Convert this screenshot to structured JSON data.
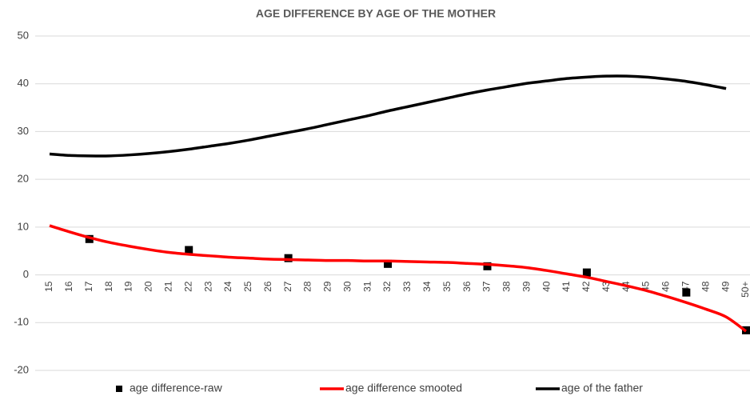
{
  "chart_data": {
    "type": "line",
    "title": "AGE DIFFERENCE BY AGE OF THE MOTHER",
    "categories": [
      "15",
      "16",
      "17",
      "18",
      "19",
      "20",
      "21",
      "22",
      "23",
      "24",
      "25",
      "26",
      "27",
      "28",
      "29",
      "30",
      "31",
      "32",
      "33",
      "34",
      "35",
      "36",
      "37",
      "38",
      "39",
      "40",
      "41",
      "42",
      "43",
      "44",
      "45",
      "46",
      "47",
      "48",
      "49",
      "50+"
    ],
    "series": [
      {
        "name": "age difference-raw",
        "color": "#000000",
        "marker": "square",
        "values": [
          null,
          null,
          7.5,
          null,
          null,
          null,
          null,
          5.2,
          null,
          null,
          null,
          null,
          3.5,
          null,
          null,
          null,
          null,
          2.3,
          null,
          null,
          null,
          null,
          1.8,
          null,
          null,
          null,
          null,
          0.5,
          null,
          null,
          null,
          null,
          -3.7,
          null,
          null,
          -11.6
        ]
      },
      {
        "name": "age difference smooted",
        "color": "#ff0000",
        "values": [
          10.3,
          9.0,
          7.8,
          6.8,
          6.0,
          5.3,
          4.7,
          4.3,
          4.0,
          3.7,
          3.5,
          3.3,
          3.2,
          3.1,
          3.0,
          3.0,
          2.9,
          2.9,
          2.8,
          2.7,
          2.6,
          2.4,
          2.2,
          1.9,
          1.5,
          0.9,
          0.2,
          -0.5,
          -1.4,
          -2.3,
          -3.3,
          -4.5,
          -5.8,
          -7.2,
          -8.8,
          -11.8
        ]
      },
      {
        "name": "age of the father",
        "color": "#000000",
        "values": [
          25.3,
          25.0,
          24.9,
          24.9,
          25.1,
          25.4,
          25.8,
          26.3,
          26.9,
          27.5,
          28.2,
          29.0,
          29.8,
          30.6,
          31.5,
          32.4,
          33.3,
          34.3,
          35.2,
          36.1,
          37.0,
          37.9,
          38.7,
          39.4,
          40.1,
          40.6,
          41.1,
          41.4,
          41.6,
          41.6,
          41.4,
          41.0,
          40.5,
          39.8,
          39.0,
          null
        ]
      }
    ],
    "ylim": [
      -20,
      50
    ],
    "yticks": [
      -20,
      -10,
      0,
      10,
      20,
      30,
      40,
      50
    ],
    "grid": true,
    "legend": "bottom"
  }
}
